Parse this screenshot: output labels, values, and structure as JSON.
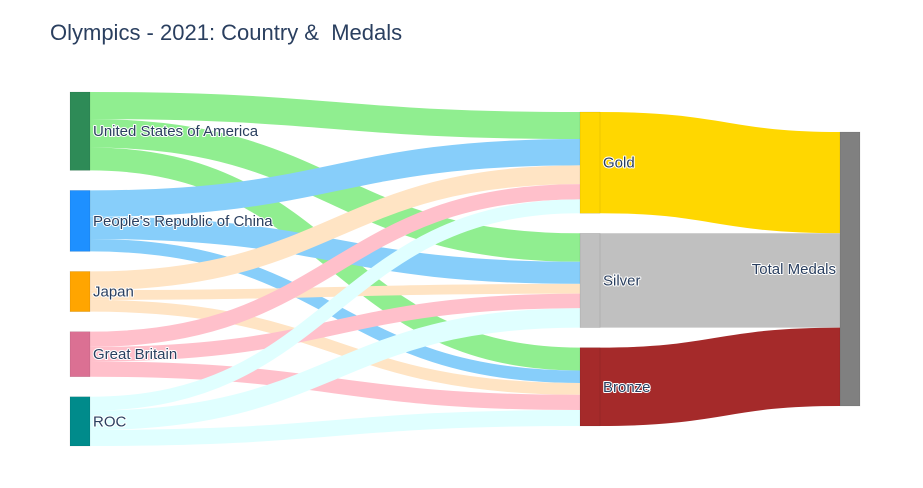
{
  "chart_data": {
    "type": "sankey",
    "title": "Olympics - 2021: Country &  Medals",
    "nodes": [
      {
        "id": "usa",
        "label": "United States of America",
        "color": "#2e8b57"
      },
      {
        "id": "china",
        "label": "People's Republic of China",
        "color": "#1e90ff"
      },
      {
        "id": "japan",
        "label": "Japan",
        "color": "#ffa500"
      },
      {
        "id": "gb",
        "label": "Great Britain",
        "color": "#db7093"
      },
      {
        "id": "roc",
        "label": "ROC",
        "color": "#008b8b"
      },
      {
        "id": "gold",
        "label": "Gold",
        "color": "#ffd700"
      },
      {
        "id": "silver",
        "label": "Silver",
        "color": "#c0c0c0"
      },
      {
        "id": "bronze",
        "label": "Bronze",
        "color": "#a52a2a"
      },
      {
        "id": "total",
        "label": "Total Medals",
        "color": "#808080"
      }
    ],
    "columns": [
      [
        "usa",
        "china",
        "japan",
        "gb",
        "roc"
      ],
      [
        "gold",
        "silver",
        "bronze"
      ],
      [
        "total"
      ]
    ],
    "links": [
      {
        "source": "usa",
        "target": "gold",
        "value": 39,
        "color": "#90ee90"
      },
      {
        "source": "usa",
        "target": "silver",
        "value": 41,
        "color": "#90ee90"
      },
      {
        "source": "usa",
        "target": "bronze",
        "value": 33,
        "color": "#90ee90"
      },
      {
        "source": "china",
        "target": "gold",
        "value": 38,
        "color": "#87cefa"
      },
      {
        "source": "china",
        "target": "silver",
        "value": 32,
        "color": "#87cefa"
      },
      {
        "source": "china",
        "target": "bronze",
        "value": 18,
        "color": "#87cefa"
      },
      {
        "source": "japan",
        "target": "gold",
        "value": 27,
        "color": "#ffe4c4"
      },
      {
        "source": "japan",
        "target": "silver",
        "value": 14,
        "color": "#ffe4c4"
      },
      {
        "source": "japan",
        "target": "bronze",
        "value": 17,
        "color": "#ffe4c4"
      },
      {
        "source": "gb",
        "target": "gold",
        "value": 22,
        "color": "#ffc0cb"
      },
      {
        "source": "gb",
        "target": "silver",
        "value": 21,
        "color": "#ffc0cb"
      },
      {
        "source": "gb",
        "target": "bronze",
        "value": 22,
        "color": "#ffc0cb"
      },
      {
        "source": "roc",
        "target": "gold",
        "value": 20,
        "color": "#e0ffff"
      },
      {
        "source": "roc",
        "target": "silver",
        "value": 28,
        "color": "#e0ffff"
      },
      {
        "source": "roc",
        "target": "bronze",
        "value": 23,
        "color": "#e0ffff"
      },
      {
        "source": "gold",
        "target": "total",
        "value": 146,
        "color": "#ffd700"
      },
      {
        "source": "silver",
        "target": "total",
        "value": 136,
        "color": "#c0c0c0"
      },
      {
        "source": "bronze",
        "target": "total",
        "value": 113,
        "color": "#a52a2a"
      }
    ]
  }
}
